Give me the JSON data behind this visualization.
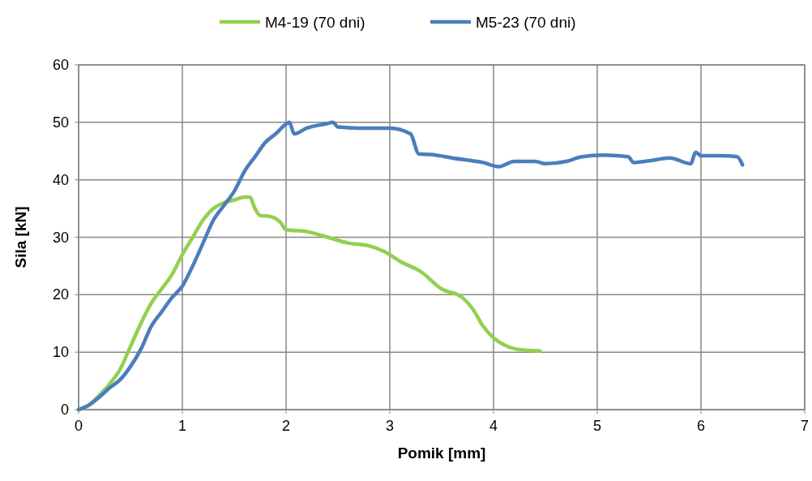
{
  "chart_data": {
    "type": "line",
    "xlabel": "Pomik [mm]",
    "ylabel": "Sila [kN]",
    "xlim": [
      0,
      7
    ],
    "xticks": [
      0,
      1,
      2,
      3,
      4,
      5,
      6,
      7
    ],
    "ylim": [
      0,
      60
    ],
    "yticks": [
      0,
      10,
      20,
      30,
      40,
      50,
      60
    ],
    "grid": true,
    "legend": "top",
    "marker": "none",
    "line_style": "solid",
    "series": [
      {
        "name": "M4-19 (70 dni)",
        "color": "#92d050",
        "x": [
          0,
          0.1,
          0.2,
          0.3,
          0.4,
          0.5,
          0.6,
          0.7,
          0.8,
          0.9,
          1.0,
          1.1,
          1.2,
          1.3,
          1.4,
          1.5,
          1.6,
          1.65,
          1.7,
          1.75,
          1.85,
          1.95,
          2.0,
          2.2,
          2.4,
          2.6,
          2.8,
          2.95,
          3.1,
          3.3,
          3.5,
          3.7,
          3.8,
          3.9,
          4.0,
          4.1,
          4.2,
          4.35,
          4.45
        ],
        "values": [
          0,
          0.8,
          2.5,
          4.5,
          7,
          11,
          15,
          18.5,
          21,
          23.5,
          27,
          30,
          33,
          35,
          36,
          36.5,
          37,
          37,
          35,
          33.8,
          33.6,
          32.5,
          31.3,
          31,
          30,
          29,
          28.5,
          27.5,
          25.8,
          24,
          21,
          19.5,
          17.5,
          14.5,
          12.5,
          11.3,
          10.6,
          10.3,
          10.2
        ]
      },
      {
        "name": "M5-23 (70 dni)",
        "color": "#4a7ebb",
        "x": [
          0,
          0.1,
          0.2,
          0.3,
          0.4,
          0.5,
          0.6,
          0.7,
          0.8,
          0.9,
          1.0,
          1.1,
          1.2,
          1.3,
          1.4,
          1.5,
          1.6,
          1.7,
          1.8,
          1.9,
          2.0,
          2.03,
          2.08,
          2.2,
          2.4,
          2.45,
          2.5,
          2.7,
          3.0,
          3.2,
          3.28,
          3.4,
          3.6,
          3.9,
          4.05,
          4.2,
          4.4,
          4.5,
          4.7,
          4.85,
          5.05,
          5.3,
          5.35,
          5.5,
          5.7,
          5.9,
          5.95,
          6.0,
          6.2,
          6.35,
          6.4
        ],
        "values": [
          0,
          0.8,
          2.2,
          3.8,
          5.2,
          7.5,
          10.5,
          14.5,
          17,
          19.5,
          21.5,
          25,
          29,
          33,
          35.5,
          38,
          41.5,
          44,
          46.5,
          48,
          49.7,
          50,
          48,
          49,
          49.8,
          50,
          49.2,
          49,
          49,
          48,
          44.5,
          44.4,
          43.8,
          43,
          42.3,
          43.2,
          43.2,
          42.8,
          43.2,
          44,
          44.3,
          44,
          43,
          43.3,
          43.8,
          42.8,
          44.8,
          44.2,
          44.2,
          44,
          42.6
        ]
      }
    ]
  }
}
